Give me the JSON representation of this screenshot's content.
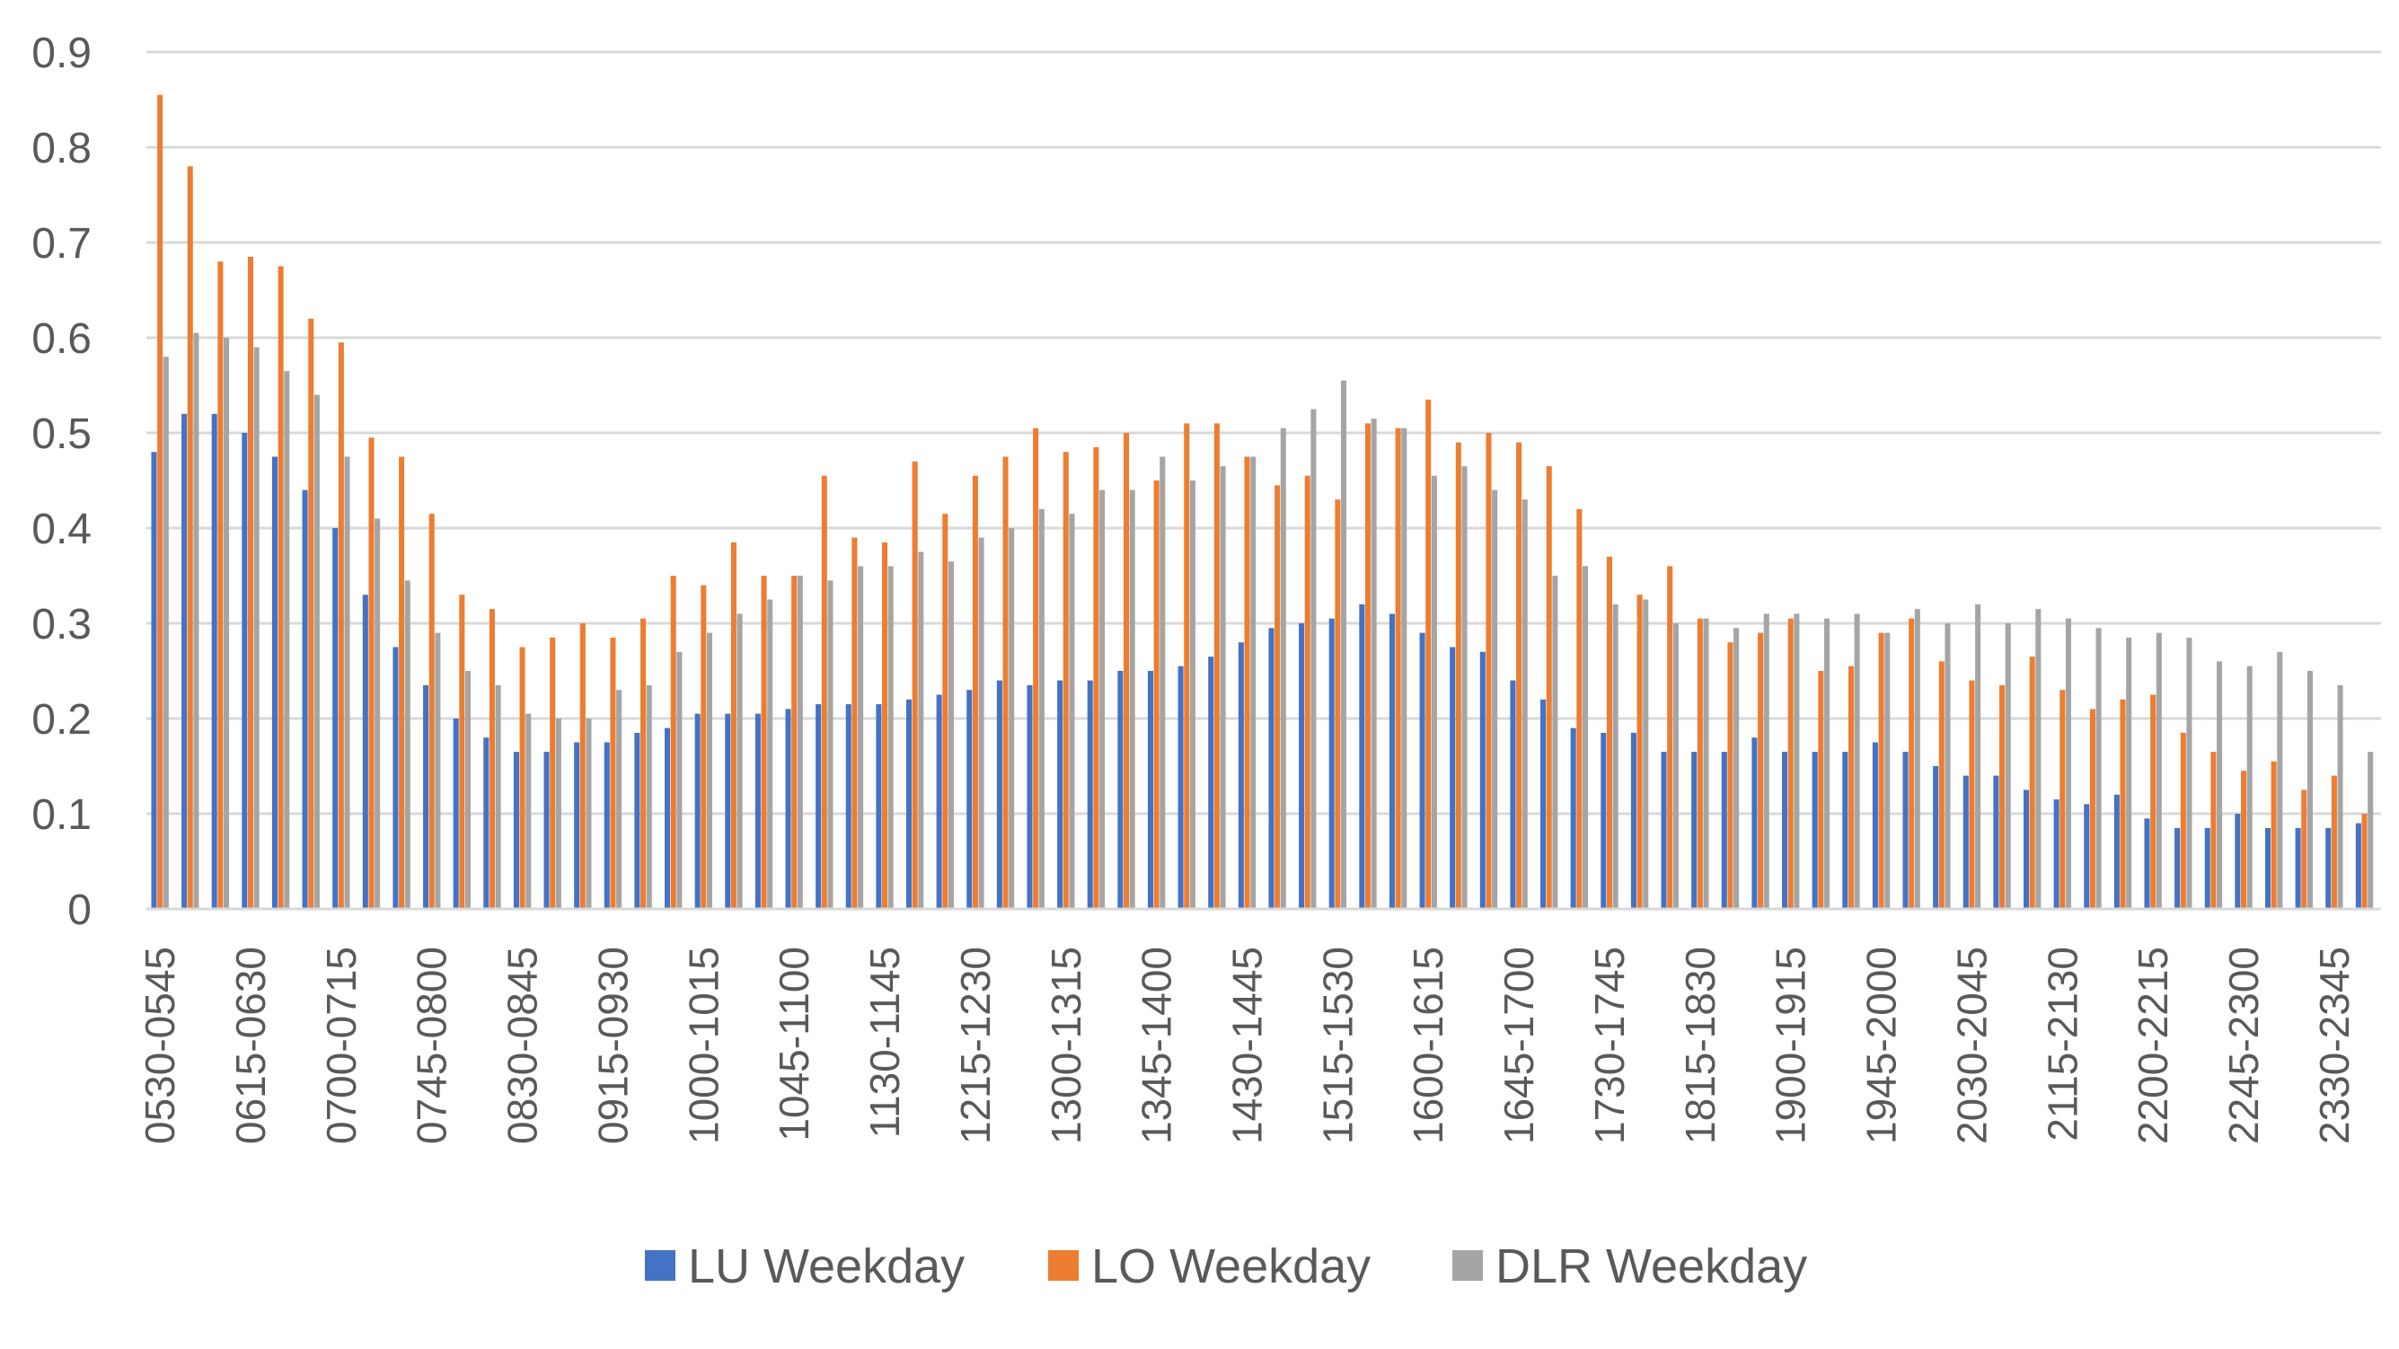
{
  "chart_data": {
    "type": "bar",
    "title": "",
    "xlabel": "",
    "ylabel": "",
    "ylim": [
      0,
      0.9
    ],
    "yticks": [
      "0",
      "0.1",
      "0.2",
      "0.3",
      "0.4",
      "0.5",
      "0.6",
      "0.7",
      "0.8",
      "0.9"
    ],
    "grid": true,
    "legend_position": "bottom",
    "categories": [
      "0530-0545",
      "0545-0600",
      "0600-0615",
      "0615-0630",
      "0630-0645",
      "0645-0700",
      "0700-0715",
      "0715-0730",
      "0730-0745",
      "0745-0800",
      "0800-0815",
      "0815-0830",
      "0830-0845",
      "0845-0900",
      "0900-0915",
      "0915-0930",
      "0930-0945",
      "0945-1000",
      "1000-1015",
      "1015-1030",
      "1030-1045",
      "1045-1100",
      "1100-1115",
      "1115-1130",
      "1130-1145",
      "1145-1200",
      "1200-1215",
      "1215-1230",
      "1230-1245",
      "1245-1300",
      "1300-1315",
      "1315-1330",
      "1330-1345",
      "1345-1400",
      "1400-1415",
      "1415-1430",
      "1430-1445",
      "1445-1500",
      "1500-1515",
      "1515-1530",
      "1530-1545",
      "1545-1600",
      "1600-1615",
      "1615-1630",
      "1630-1645",
      "1645-1700",
      "1700-1715",
      "1715-1730",
      "1730-1745",
      "1745-1800",
      "1800-1815",
      "1815-1830",
      "1830-1845",
      "1845-1900",
      "1900-1915",
      "1915-1930",
      "1930-1945",
      "1945-2000",
      "2000-2015",
      "2015-2030",
      "2030-2045",
      "2045-2100",
      "2100-2115",
      "2115-2130",
      "2130-2145",
      "2145-2200",
      "2200-2215",
      "2215-2230",
      "2230-2245",
      "2245-2300",
      "2300-2315",
      "2315-2330",
      "2330-2345",
      "2345-0000"
    ],
    "visible_tick_labels": [
      "0530-0545",
      "0615-0630",
      "0700-0715",
      "0745-0800",
      "0830-0845",
      "0915-0930",
      "1000-1015",
      "1045-1100",
      "1130-1145",
      "1215-1230",
      "1300-1315",
      "1345-1400",
      "1430-1445",
      "1515-1530",
      "1600-1615",
      "1645-1700",
      "1730-1745",
      "1815-1830",
      "1900-1915",
      "1945-2000",
      "2030-2045",
      "2115-2130",
      "2200-2215",
      "2245-2300",
      "2330-2345"
    ],
    "series": [
      {
        "name": "LU Weekday",
        "color": "#4472C4",
        "values": [
          0.48,
          0.52,
          0.52,
          0.5,
          0.475,
          0.44,
          0.4,
          0.33,
          0.275,
          0.235,
          0.2,
          0.18,
          0.165,
          0.165,
          0.175,
          0.175,
          0.185,
          0.19,
          0.205,
          0.205,
          0.205,
          0.21,
          0.215,
          0.215,
          0.215,
          0.22,
          0.225,
          0.23,
          0.24,
          0.235,
          0.24,
          0.24,
          0.25,
          0.25,
          0.255,
          0.265,
          0.28,
          0.295,
          0.3,
          0.305,
          0.32,
          0.31,
          0.29,
          0.275,
          0.27,
          0.24,
          0.22,
          0.19,
          0.185,
          0.185,
          0.165,
          0.165,
          0.165,
          0.18,
          0.165,
          0.165,
          0.165,
          0.175,
          0.165,
          0.15,
          0.14,
          0.14,
          0.125,
          0.115,
          0.11,
          0.12,
          0.095,
          0.085,
          0.085,
          0.1,
          0.085,
          0.085,
          0.085,
          0.09
        ]
      },
      {
        "name": "LO Weekday",
        "color": "#ED7D31",
        "values": [
          0.855,
          0.78,
          0.68,
          0.685,
          0.675,
          0.62,
          0.595,
          0.495,
          0.475,
          0.415,
          0.33,
          0.315,
          0.275,
          0.285,
          0.3,
          0.285,
          0.305,
          0.35,
          0.34,
          0.385,
          0.35,
          0.35,
          0.455,
          0.39,
          0.385,
          0.47,
          0.415,
          0.455,
          0.475,
          0.505,
          0.48,
          0.485,
          0.5,
          0.45,
          0.51,
          0.51,
          0.475,
          0.445,
          0.455,
          0.43,
          0.51,
          0.505,
          0.535,
          0.49,
          0.5,
          0.49,
          0.465,
          0.42,
          0.37,
          0.33,
          0.36,
          0.305,
          0.28,
          0.29,
          0.305,
          0.25,
          0.255,
          0.29,
          0.305,
          0.26,
          0.24,
          0.235,
          0.265,
          0.23,
          0.21,
          0.22,
          0.225,
          0.185,
          0.165,
          0.145,
          0.155,
          0.125,
          0.14,
          0.1
        ]
      },
      {
        "name": "DLR Weekday",
        "color": "#A5A5A5",
        "values": [
          0.58,
          0.605,
          0.6,
          0.59,
          0.565,
          0.54,
          0.475,
          0.41,
          0.345,
          0.29,
          0.25,
          0.235,
          0.205,
          0.2,
          0.2,
          0.23,
          0.235,
          0.27,
          0.29,
          0.31,
          0.325,
          0.35,
          0.345,
          0.36,
          0.36,
          0.375,
          0.365,
          0.39,
          0.4,
          0.42,
          0.415,
          0.44,
          0.44,
          0.475,
          0.45,
          0.465,
          0.475,
          0.505,
          0.525,
          0.555,
          0.515,
          0.505,
          0.455,
          0.465,
          0.44,
          0.43,
          0.35,
          0.36,
          0.32,
          0.325,
          0.3,
          0.305,
          0.295,
          0.31,
          0.31,
          0.305,
          0.31,
          0.29,
          0.315,
          0.3,
          0.32,
          0.3,
          0.315,
          0.305,
          0.295,
          0.285,
          0.29,
          0.285,
          0.26,
          0.255,
          0.27,
          0.25,
          0.235,
          0.165
        ]
      }
    ]
  }
}
